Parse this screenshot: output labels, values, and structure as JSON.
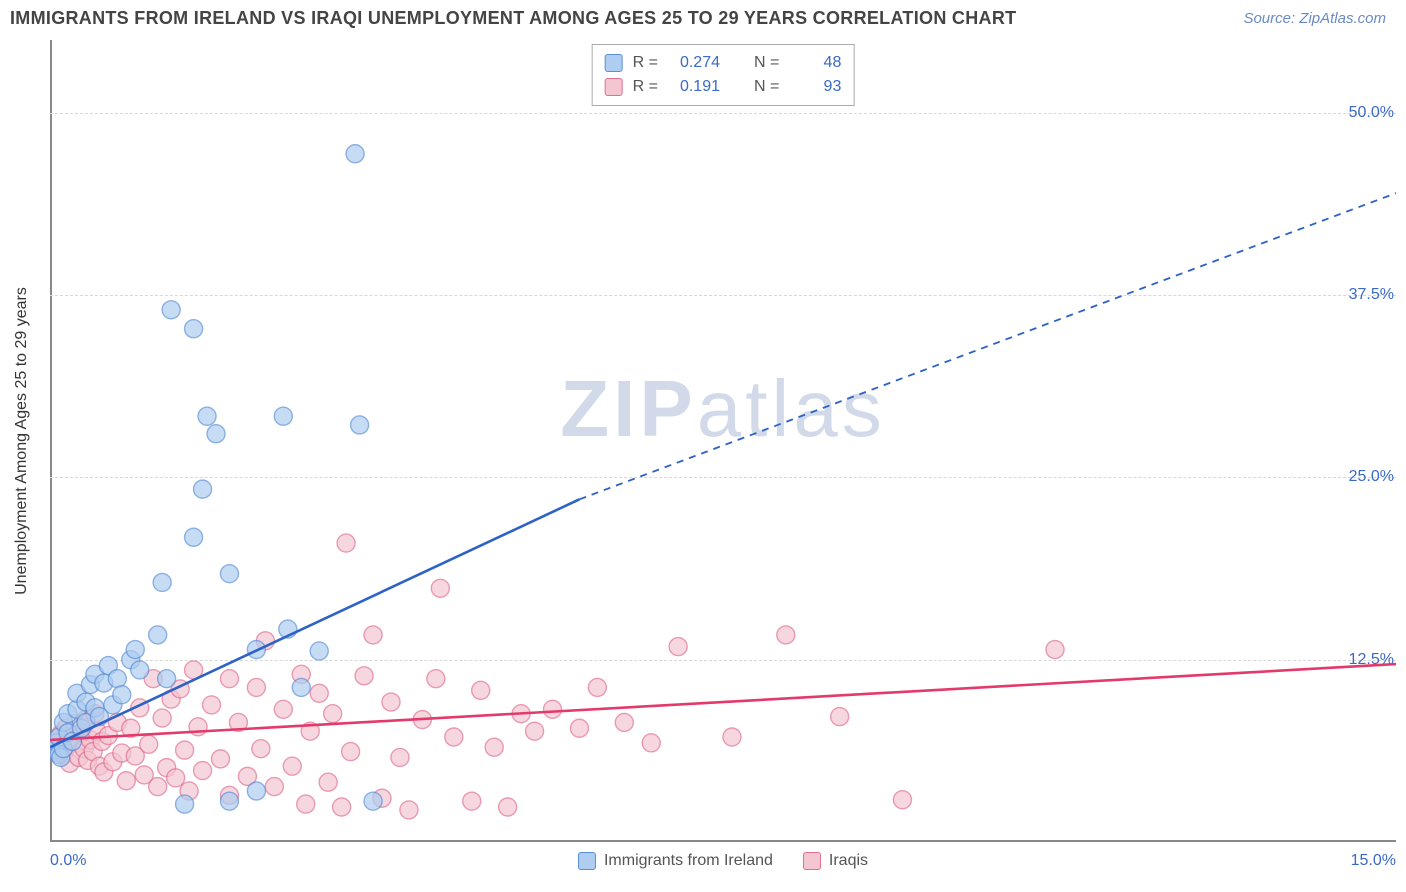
{
  "title": "IMMIGRANTS FROM IRELAND VS IRAQI UNEMPLOYMENT AMONG AGES 25 TO 29 YEARS CORRELATION CHART",
  "source": "Source: ZipAtlas.com",
  "y_axis_label": "Unemployment Among Ages 25 to 29 years",
  "watermark_bold": "ZIP",
  "watermark_rest": "atlas",
  "chart": {
    "type": "scatter",
    "xlim": [
      0,
      15
    ],
    "ylim": [
      0,
      55
    ],
    "x_ticks": [
      {
        "v": 0,
        "label": "0.0%"
      },
      {
        "v": 15,
        "label": "15.0%"
      }
    ],
    "y_ticks": [
      {
        "v": 12.5,
        "label": "12.5%"
      },
      {
        "v": 25.0,
        "label": "25.0%"
      },
      {
        "v": 37.5,
        "label": "37.5%"
      },
      {
        "v": 50.0,
        "label": "50.0%"
      }
    ],
    "gridlines_y": [
      12.5,
      25,
      37.5,
      50
    ],
    "background_color": "#ffffff",
    "grid_color": "#d8d8d8",
    "axis_color": "#888888",
    "marker_radius": 9,
    "marker_stroke_width": 1.4,
    "line_width": 2.6,
    "dash_pattern": "7 6"
  },
  "series": [
    {
      "key": "ireland",
      "label": "Immigrants from Ireland",
      "fill": "#aecdf0",
      "stroke": "#5a8ed6",
      "line_color": "#2d62c6",
      "R": "0.274",
      "N": "48",
      "trend_solid": {
        "x1": 0,
        "y1": 6.5,
        "x2": 5.9,
        "y2": 23.5
      },
      "trend_dashed": {
        "x1": 5.9,
        "y1": 23.5,
        "x2": 15,
        "y2": 44.5
      },
      "points": [
        [
          0.05,
          6.3
        ],
        [
          0.08,
          6.8
        ],
        [
          0.1,
          6.0
        ],
        [
          0.1,
          7.2
        ],
        [
          0.12,
          5.8
        ],
        [
          0.15,
          8.2
        ],
        [
          0.15,
          6.4
        ],
        [
          0.2,
          7.5
        ],
        [
          0.2,
          8.8
        ],
        [
          0.25,
          6.9
        ],
        [
          0.3,
          9.1
        ],
        [
          0.3,
          10.2
        ],
        [
          0.35,
          7.8
        ],
        [
          0.4,
          9.6
        ],
        [
          0.4,
          8.2
        ],
        [
          0.45,
          10.8
        ],
        [
          0.5,
          9.2
        ],
        [
          0.5,
          11.5
        ],
        [
          0.55,
          8.6
        ],
        [
          0.6,
          10.9
        ],
        [
          0.65,
          12.1
        ],
        [
          0.7,
          9.4
        ],
        [
          0.75,
          11.2
        ],
        [
          0.8,
          10.1
        ],
        [
          0.9,
          12.5
        ],
        [
          0.95,
          13.2
        ],
        [
          1.0,
          11.8
        ],
        [
          1.2,
          14.2
        ],
        [
          1.25,
          17.8
        ],
        [
          1.3,
          11.2
        ],
        [
          1.5,
          2.6
        ],
        [
          1.6,
          20.9
        ],
        [
          1.7,
          24.2
        ],
        [
          1.75,
          29.2
        ],
        [
          1.85,
          28.0
        ],
        [
          2.0,
          2.8
        ],
        [
          2.0,
          18.4
        ],
        [
          2.3,
          13.2
        ],
        [
          2.3,
          3.5
        ],
        [
          2.6,
          29.2
        ],
        [
          2.65,
          14.6
        ],
        [
          2.8,
          10.6
        ],
        [
          3.0,
          13.1
        ],
        [
          3.4,
          47.2
        ],
        [
          3.45,
          28.6
        ],
        [
          3.6,
          2.8
        ],
        [
          1.35,
          36.5
        ],
        [
          1.6,
          35.2
        ]
      ]
    },
    {
      "key": "iraqis",
      "label": "Iraqis",
      "fill": "#f3c6d2",
      "stroke": "#e06f8e",
      "line_color": "#e33a6b",
      "R": "0.191",
      "N": "93",
      "trend_solid": {
        "x1": 0,
        "y1": 7.0,
        "x2": 15,
        "y2": 12.2
      },
      "trend_dashed": null,
      "points": [
        [
          0.05,
          6.4
        ],
        [
          0.08,
          7.0
        ],
        [
          0.1,
          6.2
        ],
        [
          0.12,
          7.4
        ],
        [
          0.15,
          6.0
        ],
        [
          0.18,
          7.8
        ],
        [
          0.2,
          6.6
        ],
        [
          0.22,
          5.4
        ],
        [
          0.25,
          7.2
        ],
        [
          0.28,
          8.1
        ],
        [
          0.3,
          6.8
        ],
        [
          0.32,
          5.8
        ],
        [
          0.35,
          7.5
        ],
        [
          0.38,
          6.4
        ],
        [
          0.4,
          8.4
        ],
        [
          0.42,
          5.6
        ],
        [
          0.45,
          7.0
        ],
        [
          0.48,
          6.2
        ],
        [
          0.5,
          8.8
        ],
        [
          0.52,
          7.6
        ],
        [
          0.55,
          5.2
        ],
        [
          0.58,
          6.9
        ],
        [
          0.6,
          4.8
        ],
        [
          0.65,
          7.3
        ],
        [
          0.7,
          5.5
        ],
        [
          0.75,
          8.2
        ],
        [
          0.8,
          6.1
        ],
        [
          0.85,
          4.2
        ],
        [
          0.9,
          7.8
        ],
        [
          0.95,
          5.9
        ],
        [
          1.0,
          9.2
        ],
        [
          1.05,
          4.6
        ],
        [
          1.1,
          6.7
        ],
        [
          1.15,
          11.2
        ],
        [
          1.2,
          3.8
        ],
        [
          1.25,
          8.5
        ],
        [
          1.3,
          5.1
        ],
        [
          1.35,
          9.8
        ],
        [
          1.4,
          4.4
        ],
        [
          1.45,
          10.5
        ],
        [
          1.5,
          6.3
        ],
        [
          1.55,
          3.5
        ],
        [
          1.6,
          11.8
        ],
        [
          1.65,
          7.9
        ],
        [
          1.7,
          4.9
        ],
        [
          1.8,
          9.4
        ],
        [
          1.9,
          5.7
        ],
        [
          2.0,
          11.2
        ],
        [
          2.0,
          3.2
        ],
        [
          2.1,
          8.2
        ],
        [
          2.2,
          4.5
        ],
        [
          2.3,
          10.6
        ],
        [
          2.35,
          6.4
        ],
        [
          2.4,
          13.8
        ],
        [
          2.5,
          3.8
        ],
        [
          2.6,
          9.1
        ],
        [
          2.7,
          5.2
        ],
        [
          2.8,
          11.5
        ],
        [
          2.85,
          2.6
        ],
        [
          2.9,
          7.6
        ],
        [
          3.0,
          10.2
        ],
        [
          3.1,
          4.1
        ],
        [
          3.15,
          8.8
        ],
        [
          3.25,
          2.4
        ],
        [
          3.3,
          20.5
        ],
        [
          3.35,
          6.2
        ],
        [
          3.5,
          11.4
        ],
        [
          3.6,
          14.2
        ],
        [
          3.7,
          3.0
        ],
        [
          3.8,
          9.6
        ],
        [
          3.9,
          5.8
        ],
        [
          4.0,
          2.2
        ],
        [
          4.15,
          8.4
        ],
        [
          4.3,
          11.2
        ],
        [
          4.35,
          17.4
        ],
        [
          4.5,
          7.2
        ],
        [
          4.7,
          2.8
        ],
        [
          4.8,
          10.4
        ],
        [
          4.95,
          6.5
        ],
        [
          5.1,
          2.4
        ],
        [
          5.25,
          8.8
        ],
        [
          5.4,
          7.6
        ],
        [
          5.6,
          9.1
        ],
        [
          5.9,
          7.8
        ],
        [
          6.1,
          10.6
        ],
        [
          6.4,
          8.2
        ],
        [
          6.7,
          6.8
        ],
        [
          7.0,
          13.4
        ],
        [
          7.6,
          7.2
        ],
        [
          8.2,
          14.2
        ],
        [
          9.5,
          2.9
        ],
        [
          11.2,
          13.2
        ],
        [
          8.8,
          8.6
        ]
      ]
    }
  ],
  "legend_top": {
    "R_label": "R =",
    "N_label": "N ="
  }
}
